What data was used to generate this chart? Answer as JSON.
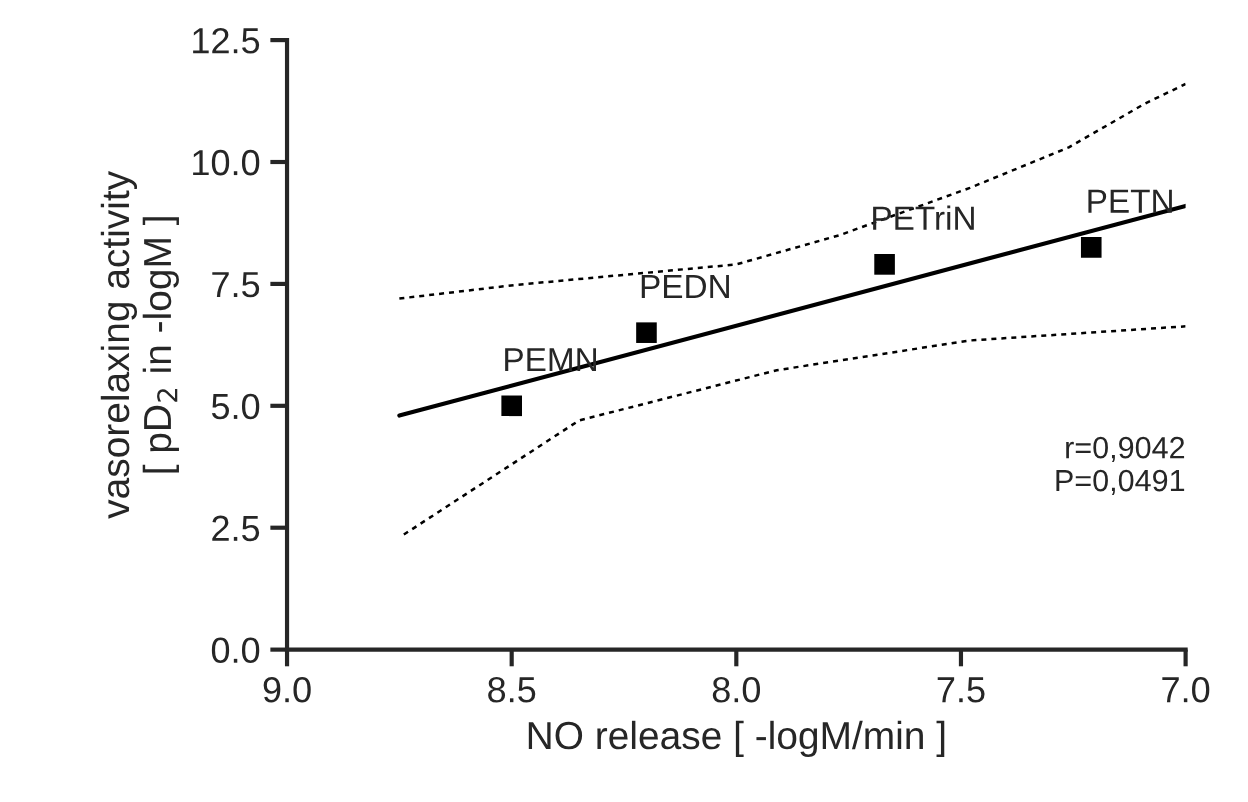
{
  "chart_data": {
    "type": "scatter",
    "xlabel": "NO release [ -logM/min ]",
    "ylabel": "vasorelaxing activity\n[ pD$_{2}$ in -logM ]",
    "xlim": [
      9.0,
      7.0
    ],
    "ylim": [
      0,
      12.5
    ],
    "xticks": [
      {
        "value": 9.0,
        "label": "9.0"
      },
      {
        "value": 8.5,
        "label": "8.5"
      },
      {
        "value": 8.0,
        "label": "8.0"
      },
      {
        "value": 7.5,
        "label": "7.5"
      },
      {
        "value": 7.0,
        "label": "7.0"
      }
    ],
    "yticks": [
      {
        "value": 0,
        "label": "0.0"
      },
      {
        "value": 2.5,
        "label": "2.5"
      },
      {
        "value": 5,
        "label": "5.0"
      },
      {
        "value": 7.5,
        "label": "7.5"
      },
      {
        "value": 10,
        "label": "10.0"
      },
      {
        "value": 12.5,
        "label": "12.5"
      }
    ],
    "grid": false,
    "legend": false,
    "series": [
      {
        "marker": "square",
        "color": "#000000",
        "x": [
          8.5,
          8.2,
          7.67,
          7.21
        ],
        "values": [
          5.0,
          6.5,
          7.9,
          8.25
        ]
      },
      {
        "type": "line",
        "line_style": "solid",
        "color": "#000000",
        "x": [
          8.75,
          7.0
        ],
        "values": [
          4.8,
          9.1
        ]
      },
      {
        "type": "line",
        "line_style": "dotted",
        "color": "#000000",
        "x": [
          8.75,
          8.49,
          8.0,
          7.77,
          7.48,
          7.26,
          7.09,
          7.0
        ],
        "values": [
          7.2,
          7.48,
          7.9,
          8.5,
          9.47,
          10.3,
          11.2,
          11.6
        ]
      },
      {
        "type": "line",
        "line_style": "dotted",
        "color": "#000000",
        "x": [
          8.74,
          8.35,
          7.91,
          7.48,
          7.0
        ],
        "values": [
          2.36,
          4.7,
          5.73,
          6.34,
          6.63
        ]
      }
    ],
    "annotations": [
      {
        "text": "PEMN",
        "x": 8.5,
        "y": 5.0
      },
      {
        "text": "PEDN",
        "x": 8.2,
        "y": 6.5
      },
      {
        "text": "PETriN",
        "x": 7.67,
        "y": 7.9
      },
      {
        "text": "PETN",
        "x": 7.21,
        "y": 8.25
      },
      "r=0,9042\nP=0,0491"
    ]
  }
}
